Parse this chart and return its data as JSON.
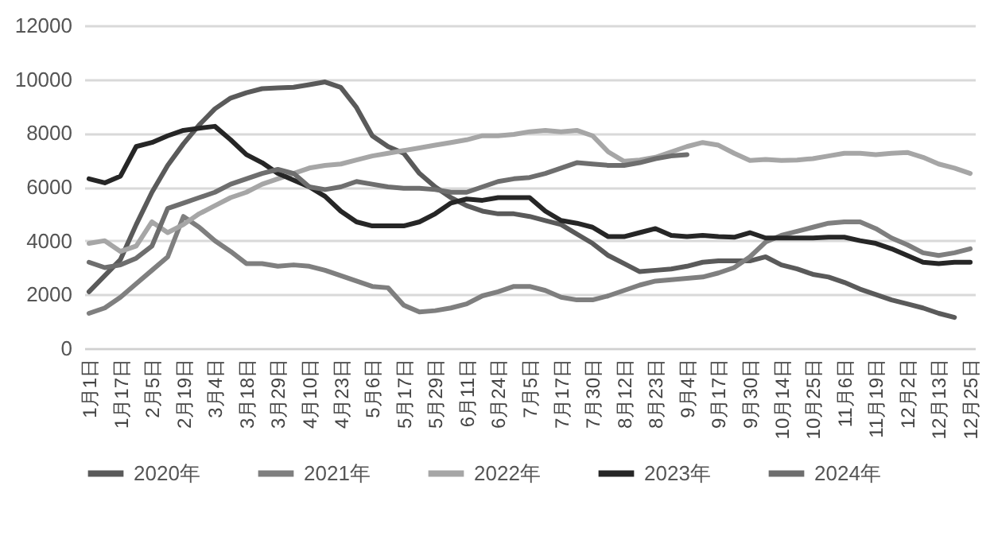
{
  "chart_data": {
    "type": "line",
    "categories": [
      "1月1日",
      null,
      "1月17日",
      null,
      "2月5日",
      null,
      "2月19日",
      null,
      "3月4日",
      null,
      "3月18日",
      null,
      "3月29日",
      null,
      "4月10日",
      null,
      "4月23日",
      null,
      "5月6日",
      null,
      "5月17日",
      null,
      "5月29日",
      null,
      "6月11日",
      null,
      "6月24日",
      null,
      "7月5日",
      null,
      "7月17日",
      null,
      "7月30日",
      null,
      "8月12日",
      null,
      "8月23日",
      null,
      "9月4日",
      null,
      "9月17日",
      null,
      "9月30日",
      null,
      "10月14日",
      null,
      "10月25日",
      null,
      "11月6日",
      null,
      "11月19日",
      null,
      "12月2日",
      null,
      "12月13日",
      null,
      "12月25日"
    ],
    "series": [
      {
        "name": "2020年",
        "color": "#5a5a5a",
        "values": [
          2100,
          2700,
          3300,
          4600,
          5800,
          6800,
          7600,
          8300,
          8900,
          9300,
          9500,
          9650,
          9680,
          9700,
          9800,
          9900,
          9700,
          8950,
          7900,
          7500,
          7250,
          6500,
          6000,
          5600,
          5300,
          5100,
          5000,
          5000,
          4900,
          4750,
          4600,
          4250,
          3900,
          3450,
          3150,
          2850,
          2900,
          2950,
          3050,
          3200,
          3250,
          3250,
          3250,
          3400,
          3100,
          2950,
          2750,
          2650,
          2450,
          2200,
          2000,
          1800,
          1650,
          1500,
          1300,
          1150,
          null
        ]
      },
      {
        "name": "2021年",
        "color": "#7f7f7f",
        "values": [
          1300,
          1500,
          1900,
          2400,
          2900,
          3400,
          4900,
          4500,
          4000,
          3600,
          3150,
          3150,
          3050,
          3100,
          3050,
          2900,
          2700,
          2500,
          2300,
          2250,
          1600,
          1350,
          1400,
          1500,
          1650,
          1950,
          2100,
          2300,
          2300,
          2150,
          1900,
          1800,
          1800,
          1950,
          2150,
          2350,
          2500,
          2550,
          2600,
          2650,
          2800,
          3000,
          3400,
          3950,
          4200,
          4350,
          4500,
          4650,
          4700,
          4700,
          4450,
          4100,
          3850,
          3550,
          3450,
          3550,
          3700
        ]
      },
      {
        "name": "2022年",
        "color": "#a6a6a6",
        "values": [
          3900,
          4000,
          3600,
          3800,
          4700,
          4300,
          4600,
          5000,
          5300,
          5600,
          5800,
          6100,
          6300,
          6500,
          6700,
          6800,
          6850,
          7000,
          7150,
          7250,
          7350,
          7450,
          7550,
          7650,
          7750,
          7900,
          7900,
          7950,
          8050,
          8100,
          8050,
          8100,
          7900,
          7300,
          6950,
          7000,
          7100,
          7300,
          7500,
          7650,
          7550,
          7250,
          6980,
          7020,
          6980,
          7000,
          7050,
          7150,
          7250,
          7250,
          7200,
          7250,
          7280,
          7100,
          6850,
          6700,
          6500
        ]
      },
      {
        "name": "2023年",
        "color": "#262626",
        "values": [
          6300,
          6150,
          6400,
          7500,
          7650,
          7900,
          8100,
          8180,
          8250,
          7750,
          7200,
          6900,
          6500,
          6250,
          6000,
          5650,
          5100,
          4700,
          4550,
          4550,
          4550,
          4700,
          5000,
          5400,
          5550,
          5500,
          5600,
          5600,
          5600,
          5100,
          4750,
          4650,
          4500,
          4150,
          4150,
          4300,
          4450,
          4200,
          4150,
          4200,
          4150,
          4130,
          4300,
          4100,
          4100,
          4100,
          4100,
          4130,
          4130,
          4000,
          3900,
          3700,
          3450,
          3200,
          3150,
          3200,
          3200
        ]
      },
      {
        "name": "2024年",
        "color": "#6e6e6e",
        "values": [
          3200,
          3000,
          3100,
          3350,
          3800,
          5200,
          5400,
          5600,
          5800,
          6100,
          6300,
          6500,
          6650,
          6500,
          6000,
          5900,
          6000,
          6200,
          6100,
          6000,
          5950,
          5950,
          5900,
          5800,
          5800,
          6000,
          6200,
          6300,
          6350,
          6500,
          6700,
          6900,
          6850,
          6800,
          6800,
          6900,
          7050,
          7150,
          7200,
          null,
          null,
          null,
          null,
          null,
          null,
          null,
          null,
          null,
          null,
          null,
          null,
          null,
          null,
          null,
          null,
          null,
          null
        ]
      }
    ],
    "ylim": [
      0,
      12000
    ],
    "yticks": [
      0,
      2000,
      4000,
      6000,
      8000,
      10000,
      12000
    ],
    "grid": "y",
    "legend": "bottom"
  }
}
